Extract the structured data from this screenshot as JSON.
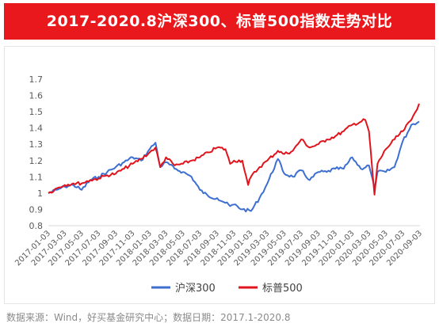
{
  "header": {
    "title": "2017-2020.8沪深300、标普500指数走势对比"
  },
  "footer": {
    "source": "数据来源：Wind，好买基金研究中心；数据日期：2017.1-2020.8"
  },
  "colors": {
    "title_bg": "#e8181c",
    "hs300": "#3d6fd1",
    "sp500": "#e0141c"
  },
  "chart_data": {
    "type": "line",
    "title": "2017-2020.8沪深300、标普500指数走势对比",
    "xlabel": "",
    "ylabel": "",
    "ylim": [
      0.8,
      1.7
    ],
    "yticks": [
      "0.8",
      "0.9",
      "1",
      "1.1",
      "1.2",
      "1.3",
      "1.4",
      "1.5",
      "1.6",
      "1.7"
    ],
    "ytick_values": [
      0.8,
      0.9,
      1.0,
      1.1,
      1.2,
      1.3,
      1.4,
      1.5,
      1.6,
      1.7
    ],
    "xticks": [
      "2017-01-03",
      "2017-03-03",
      "2017-05-03",
      "2017-07-03",
      "2017-09-03",
      "2017-11-03",
      "2018-01-03",
      "2018-03-03",
      "2018-05-03",
      "2018-07-03",
      "2018-09-03",
      "2018-11-03",
      "2019-01-03",
      "2019-03-03",
      "2019-05-03",
      "2019-07-03",
      "2019-09-03",
      "2019-11-03",
      "2020-01-03",
      "2020-03-03",
      "2020-05-03",
      "2020-07-03",
      "2020-09-03"
    ],
    "grid": false,
    "legend": "bottom",
    "series": [
      {
        "name": "沪深300",
        "color": "#3d6fd1",
        "x": [
          "2017-01-03",
          "2017-02-03",
          "2017-03-03",
          "2017-04-03",
          "2017-05-03",
          "2017-06-03",
          "2017-07-03",
          "2017-08-03",
          "2017-09-03",
          "2017-10-03",
          "2017-11-03",
          "2017-12-03",
          "2018-01-03",
          "2018-01-24",
          "2018-02-10",
          "2018-03-03",
          "2018-04-03",
          "2018-05-03",
          "2018-06-03",
          "2018-07-03",
          "2018-08-03",
          "2018-09-03",
          "2018-10-03",
          "2018-10-20",
          "2018-11-03",
          "2018-12-03",
          "2019-01-03",
          "2019-02-03",
          "2019-03-03",
          "2019-04-10",
          "2019-05-03",
          "2019-06-03",
          "2019-07-03",
          "2019-08-03",
          "2019-09-03",
          "2019-10-03",
          "2019-11-03",
          "2019-12-03",
          "2020-01-03",
          "2020-02-03",
          "2020-03-03",
          "2020-03-23",
          "2020-04-03",
          "2020-05-03",
          "2020-06-03",
          "2020-07-03",
          "2020-07-20",
          "2020-08-03",
          "2020-08-31"
        ],
        "values": [
          1.0,
          1.02,
          1.04,
          1.05,
          1.02,
          1.08,
          1.1,
          1.13,
          1.16,
          1.19,
          1.22,
          1.2,
          1.27,
          1.31,
          1.16,
          1.19,
          1.15,
          1.13,
          1.1,
          1.02,
          0.98,
          0.97,
          0.94,
          0.92,
          0.93,
          0.9,
          0.89,
          0.97,
          1.06,
          1.21,
          1.12,
          1.1,
          1.14,
          1.08,
          1.13,
          1.13,
          1.15,
          1.15,
          1.22,
          1.15,
          1.17,
          1.03,
          1.13,
          1.13,
          1.16,
          1.32,
          1.37,
          1.42,
          1.44
        ]
      },
      {
        "name": "标普500",
        "color": "#e0141c",
        "x": [
          "2017-01-03",
          "2017-02-03",
          "2017-03-03",
          "2017-04-03",
          "2017-05-03",
          "2017-06-03",
          "2017-07-03",
          "2017-08-03",
          "2017-09-03",
          "2017-10-03",
          "2017-11-03",
          "2017-12-03",
          "2018-01-03",
          "2018-01-24",
          "2018-02-10",
          "2018-03-03",
          "2018-04-03",
          "2018-05-03",
          "2018-06-03",
          "2018-07-03",
          "2018-08-03",
          "2018-09-03",
          "2018-10-03",
          "2018-10-20",
          "2018-11-03",
          "2018-12-03",
          "2018-12-24",
          "2019-01-03",
          "2019-02-03",
          "2019-03-03",
          "2019-04-10",
          "2019-05-03",
          "2019-06-03",
          "2019-07-03",
          "2019-08-03",
          "2019-09-03",
          "2019-10-03",
          "2019-11-03",
          "2019-12-03",
          "2020-01-03",
          "2020-02-19",
          "2020-03-03",
          "2020-03-23",
          "2020-04-03",
          "2020-05-03",
          "2020-06-03",
          "2020-07-03",
          "2020-08-03",
          "2020-08-31"
        ],
        "values": [
          1.0,
          1.03,
          1.05,
          1.06,
          1.06,
          1.08,
          1.09,
          1.11,
          1.12,
          1.15,
          1.18,
          1.21,
          1.25,
          1.28,
          1.16,
          1.22,
          1.17,
          1.18,
          1.2,
          1.22,
          1.25,
          1.28,
          1.27,
          1.18,
          1.2,
          1.2,
          1.05,
          1.1,
          1.16,
          1.2,
          1.26,
          1.24,
          1.26,
          1.33,
          1.28,
          1.3,
          1.33,
          1.35,
          1.38,
          1.42,
          1.45,
          1.38,
          0.99,
          1.18,
          1.27,
          1.33,
          1.38,
          1.45,
          1.55
        ]
      }
    ]
  }
}
